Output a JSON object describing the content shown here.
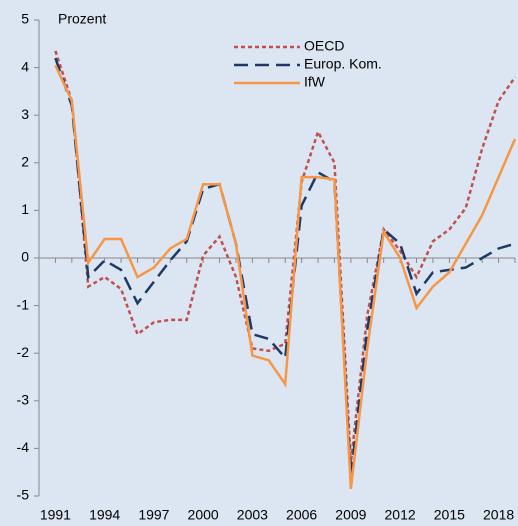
{
  "chart_data": {
    "type": "line",
    "y_label": "Prozent",
    "x": [
      1991,
      1992,
      1993,
      1994,
      1995,
      1996,
      1997,
      1998,
      1999,
      2000,
      2001,
      2002,
      2003,
      2004,
      2005,
      2006,
      2007,
      2008,
      2009,
      2010,
      2011,
      2012,
      2013,
      2014,
      2015,
      2016,
      2017,
      2018,
      2019
    ],
    "series": [
      {
        "name": "OECD",
        "color": "#c0504d",
        "dash": "4,3",
        "values": [
          4.35,
          3.3,
          -0.6,
          -0.4,
          -0.65,
          -1.6,
          -1.35,
          -1.3,
          -1.3,
          0.05,
          0.45,
          -0.4,
          -1.9,
          -1.95,
          -1.8,
          1.6,
          2.65,
          2.0,
          -4.3,
          -1.2,
          0.6,
          0.15,
          -0.4,
          0.35,
          0.6,
          1.05,
          2.3,
          3.3,
          3.8
        ]
      },
      {
        "name": "Europ. Kom.",
        "color": "#1f3864",
        "dash": "14,7",
        "values": [
          4.2,
          3.2,
          -0.4,
          -0.05,
          -0.25,
          -0.95,
          -0.5,
          -0.05,
          0.35,
          1.45,
          1.55,
          0.3,
          -1.6,
          -1.7,
          -2.1,
          1.1,
          1.8,
          1.6,
          -4.6,
          -1.5,
          0.6,
          0.3,
          -0.75,
          -0.3,
          -0.25,
          -0.2,
          0.0,
          0.2,
          0.3
        ]
      },
      {
        "name": "IfW",
        "color": "#f79646",
        "dash": "none",
        "values": [
          4.05,
          3.3,
          -0.1,
          0.4,
          0.4,
          -0.4,
          -0.2,
          0.2,
          0.4,
          1.55,
          1.55,
          0.3,
          -2.05,
          -2.15,
          -2.65,
          1.7,
          1.7,
          1.65,
          -4.85,
          -1.9,
          0.55,
          0.0,
          -1.05,
          -0.6,
          -0.3,
          0.3,
          0.9,
          1.7,
          2.5
        ]
      }
    ],
    "xlim": [
      1990,
      2019
    ],
    "xticks": [
      1991,
      1994,
      1997,
      2000,
      2003,
      2006,
      2009,
      2012,
      2015,
      2018
    ],
    "ylim": [
      -5,
      5
    ],
    "yticks": [
      -5,
      -4,
      -3,
      -2,
      -1,
      0,
      1,
      2,
      3,
      4,
      5
    ],
    "legend": "top-center"
  }
}
